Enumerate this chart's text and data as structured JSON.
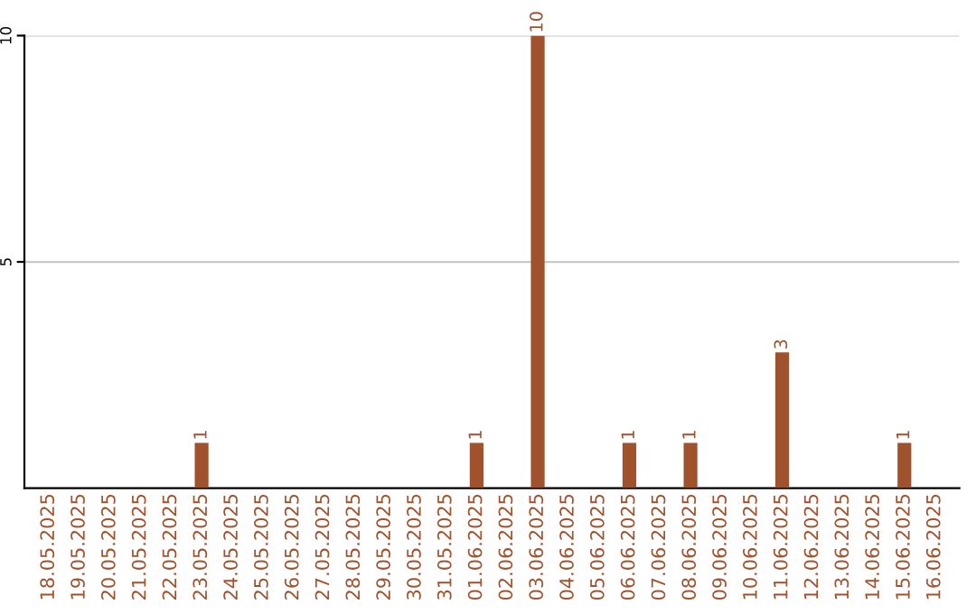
{
  "chart_data": {
    "type": "bar",
    "categories": [
      "18.05.2025",
      "19.05.2025",
      "20.05.2025",
      "21.05.2025",
      "22.05.2025",
      "23.05.2025",
      "24.05.2025",
      "25.05.2025",
      "26.05.2025",
      "27.05.2025",
      "28.05.2025",
      "29.05.2025",
      "30.05.2025",
      "31.05.2025",
      "01.06.2025",
      "02.06.2025",
      "03.06.2025",
      "04.06.2025",
      "05.06.2025",
      "06.06.2025",
      "07.06.2025",
      "08.06.2025",
      "09.06.2025",
      "10.06.2025",
      "11.06.2025",
      "12.06.2025",
      "13.06.2025",
      "14.06.2025",
      "15.06.2025",
      "16.06.2025"
    ],
    "values": [
      0,
      0,
      0,
      0,
      0,
      1,
      0,
      0,
      0,
      0,
      0,
      0,
      0,
      0,
      1,
      0,
      10,
      0,
      0,
      1,
      0,
      1,
      0,
      0,
      3,
      0,
      0,
      0,
      1,
      0
    ],
    "value_labels": [
      null,
      null,
      null,
      null,
      null,
      "1",
      null,
      null,
      null,
      null,
      null,
      null,
      null,
      null,
      "1",
      null,
      "10",
      null,
      null,
      "1",
      null,
      "1",
      null,
      null,
      "3",
      null,
      null,
      null,
      "1",
      null
    ],
    "color": "#a0522d",
    "ylim": [
      0,
      10
    ],
    "yticks": [
      5,
      10
    ],
    "grid": "y"
  }
}
